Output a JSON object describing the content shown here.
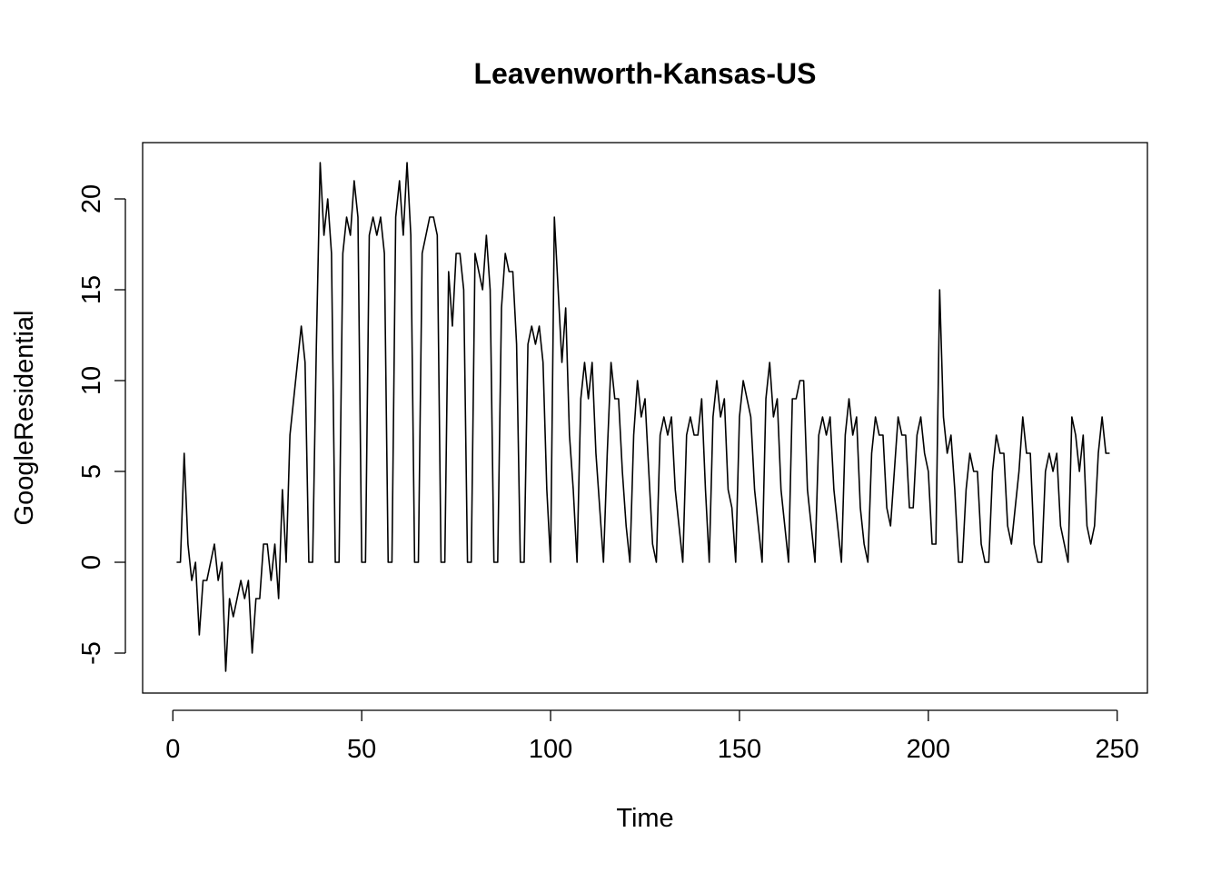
{
  "chart_data": {
    "type": "line",
    "title": "Leavenworth-Kansas-US",
    "xlabel": "Time",
    "ylabel": "GoogleResidential",
    "xlim": [
      -8,
      258
    ],
    "ylim": [
      -7.2,
      23.1
    ],
    "x_ticks": [
      0,
      50,
      100,
      150,
      200,
      250
    ],
    "y_ticks": [
      -5,
      0,
      5,
      10,
      15,
      20
    ],
    "x_tick_labels": [
      "0",
      "50",
      "100",
      "150",
      "200",
      "250"
    ],
    "y_tick_labels": [
      "-5",
      "0",
      "5",
      "10",
      "15",
      "20"
    ],
    "grid": false,
    "line_color": "#000000",
    "series": [
      {
        "x_start": 1,
        "values": [
          0,
          0,
          6,
          1,
          -1,
          0,
          -4,
          -1,
          -1,
          0,
          1,
          -1,
          0,
          -6,
          -2,
          -3,
          -2,
          -1,
          -2,
          -1,
          -5,
          -2,
          -2,
          1,
          1,
          -1,
          1,
          -2,
          4,
          0,
          7,
          9,
          11,
          13,
          11,
          0,
          0,
          12,
          22,
          18,
          20,
          17,
          0,
          0,
          17,
          19,
          18,
          21,
          19,
          0,
          0,
          18,
          19,
          18,
          19,
          17,
          0,
          0,
          19,
          21,
          18,
          22,
          18,
          0,
          0,
          17,
          18,
          19,
          19,
          18,
          0,
          0,
          16,
          13,
          17,
          17,
          15,
          0,
          0,
          17,
          16,
          15,
          18,
          15,
          0,
          0,
          14,
          17,
          16,
          16,
          12,
          0,
          0,
          12,
          13,
          12,
          13,
          11,
          4,
          0,
          19,
          15,
          11,
          14,
          7,
          4,
          0,
          9,
          11,
          9,
          11,
          6,
          3,
          0,
          6,
          11,
          9,
          9,
          5,
          2,
          0,
          7,
          10,
          8,
          9,
          5,
          1,
          0,
          7,
          8,
          7,
          8,
          4,
          2,
          0,
          7,
          8,
          7,
          7,
          9,
          4,
          0,
          8,
          10,
          8,
          9,
          4,
          3,
          0,
          8,
          10,
          9,
          8,
          4,
          2,
          0,
          9,
          11,
          8,
          9,
          4,
          2,
          0,
          9,
          9,
          10,
          10,
          4,
          2,
          0,
          7,
          8,
          7,
          8,
          4,
          2,
          0,
          7,
          9,
          7,
          8,
          3,
          1,
          0,
          6,
          8,
          7,
          7,
          3,
          2,
          5,
          8,
          7,
          7,
          3,
          3,
          7,
          8,
          6,
          5,
          1,
          1,
          15,
          8,
          6,
          7,
          4,
          0,
          0,
          4,
          6,
          5,
          5,
          1,
          0,
          0,
          5,
          7,
          6,
          6,
          2,
          1,
          3,
          5,
          8,
          6,
          6,
          1,
          0,
          0,
          5,
          6,
          5,
          6,
          2,
          1,
          0,
          8,
          7,
          5,
          7,
          2,
          1,
          2,
          6,
          8,
          6,
          6
        ]
      }
    ]
  }
}
